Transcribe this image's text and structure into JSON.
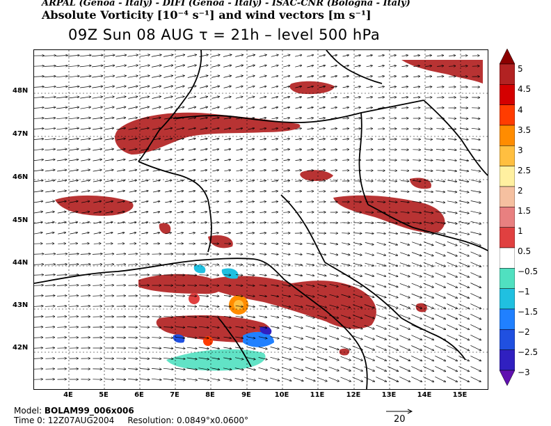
{
  "header": {
    "line1": "ARPAL (Genoa - Italy)  -  DIFI (Genoa - Italy)  -  ISAC-CNR (Bologna - Italy)",
    "line2": "Absolute Vorticity [10⁻⁴ s⁻¹] and wind vectors [m s⁻¹]",
    "line3": "09Z Sun 08 AUG  τ = 21h  –  level 500 hPa"
  },
  "map": {
    "lat_labels": [
      "48N",
      "47N",
      "46N",
      "45N",
      "44N",
      "43N",
      "42N"
    ],
    "lon_labels": [
      "4E",
      "5E",
      "6E",
      "7E",
      "8E",
      "9E",
      "10E",
      "11E",
      "12E",
      "13E",
      "14E",
      "15E"
    ]
  },
  "colorbar": {
    "labels": [
      "5",
      "4.5",
      "4",
      "3.5",
      "3",
      "2.5",
      "2",
      "1.5",
      "1",
      "0.5",
      "−0.5",
      "−1",
      "−1.5",
      "−2",
      "−2.5",
      "−3"
    ],
    "colors": [
      "#8b0000",
      "#b22222",
      "#d40000",
      "#ff3c00",
      "#ff8c00",
      "#ffbf40",
      "#fff0a0",
      "#f5c0a0",
      "#e88080",
      "#e04040",
      "#ffffff",
      "#50e0c0",
      "#20c0e0",
      "#2080ff",
      "#2050e0",
      "#3020c0",
      "#6010b0"
    ]
  },
  "footer": {
    "model_label": "Model:",
    "model_value": "BOLAM99_006x006",
    "time_label": "Time 0:",
    "time_value": "12Z07AUG2004",
    "resolution_label": "Resolution:",
    "resolution_value": "0.0849°x0.0600°",
    "ref_vector": "20"
  }
}
